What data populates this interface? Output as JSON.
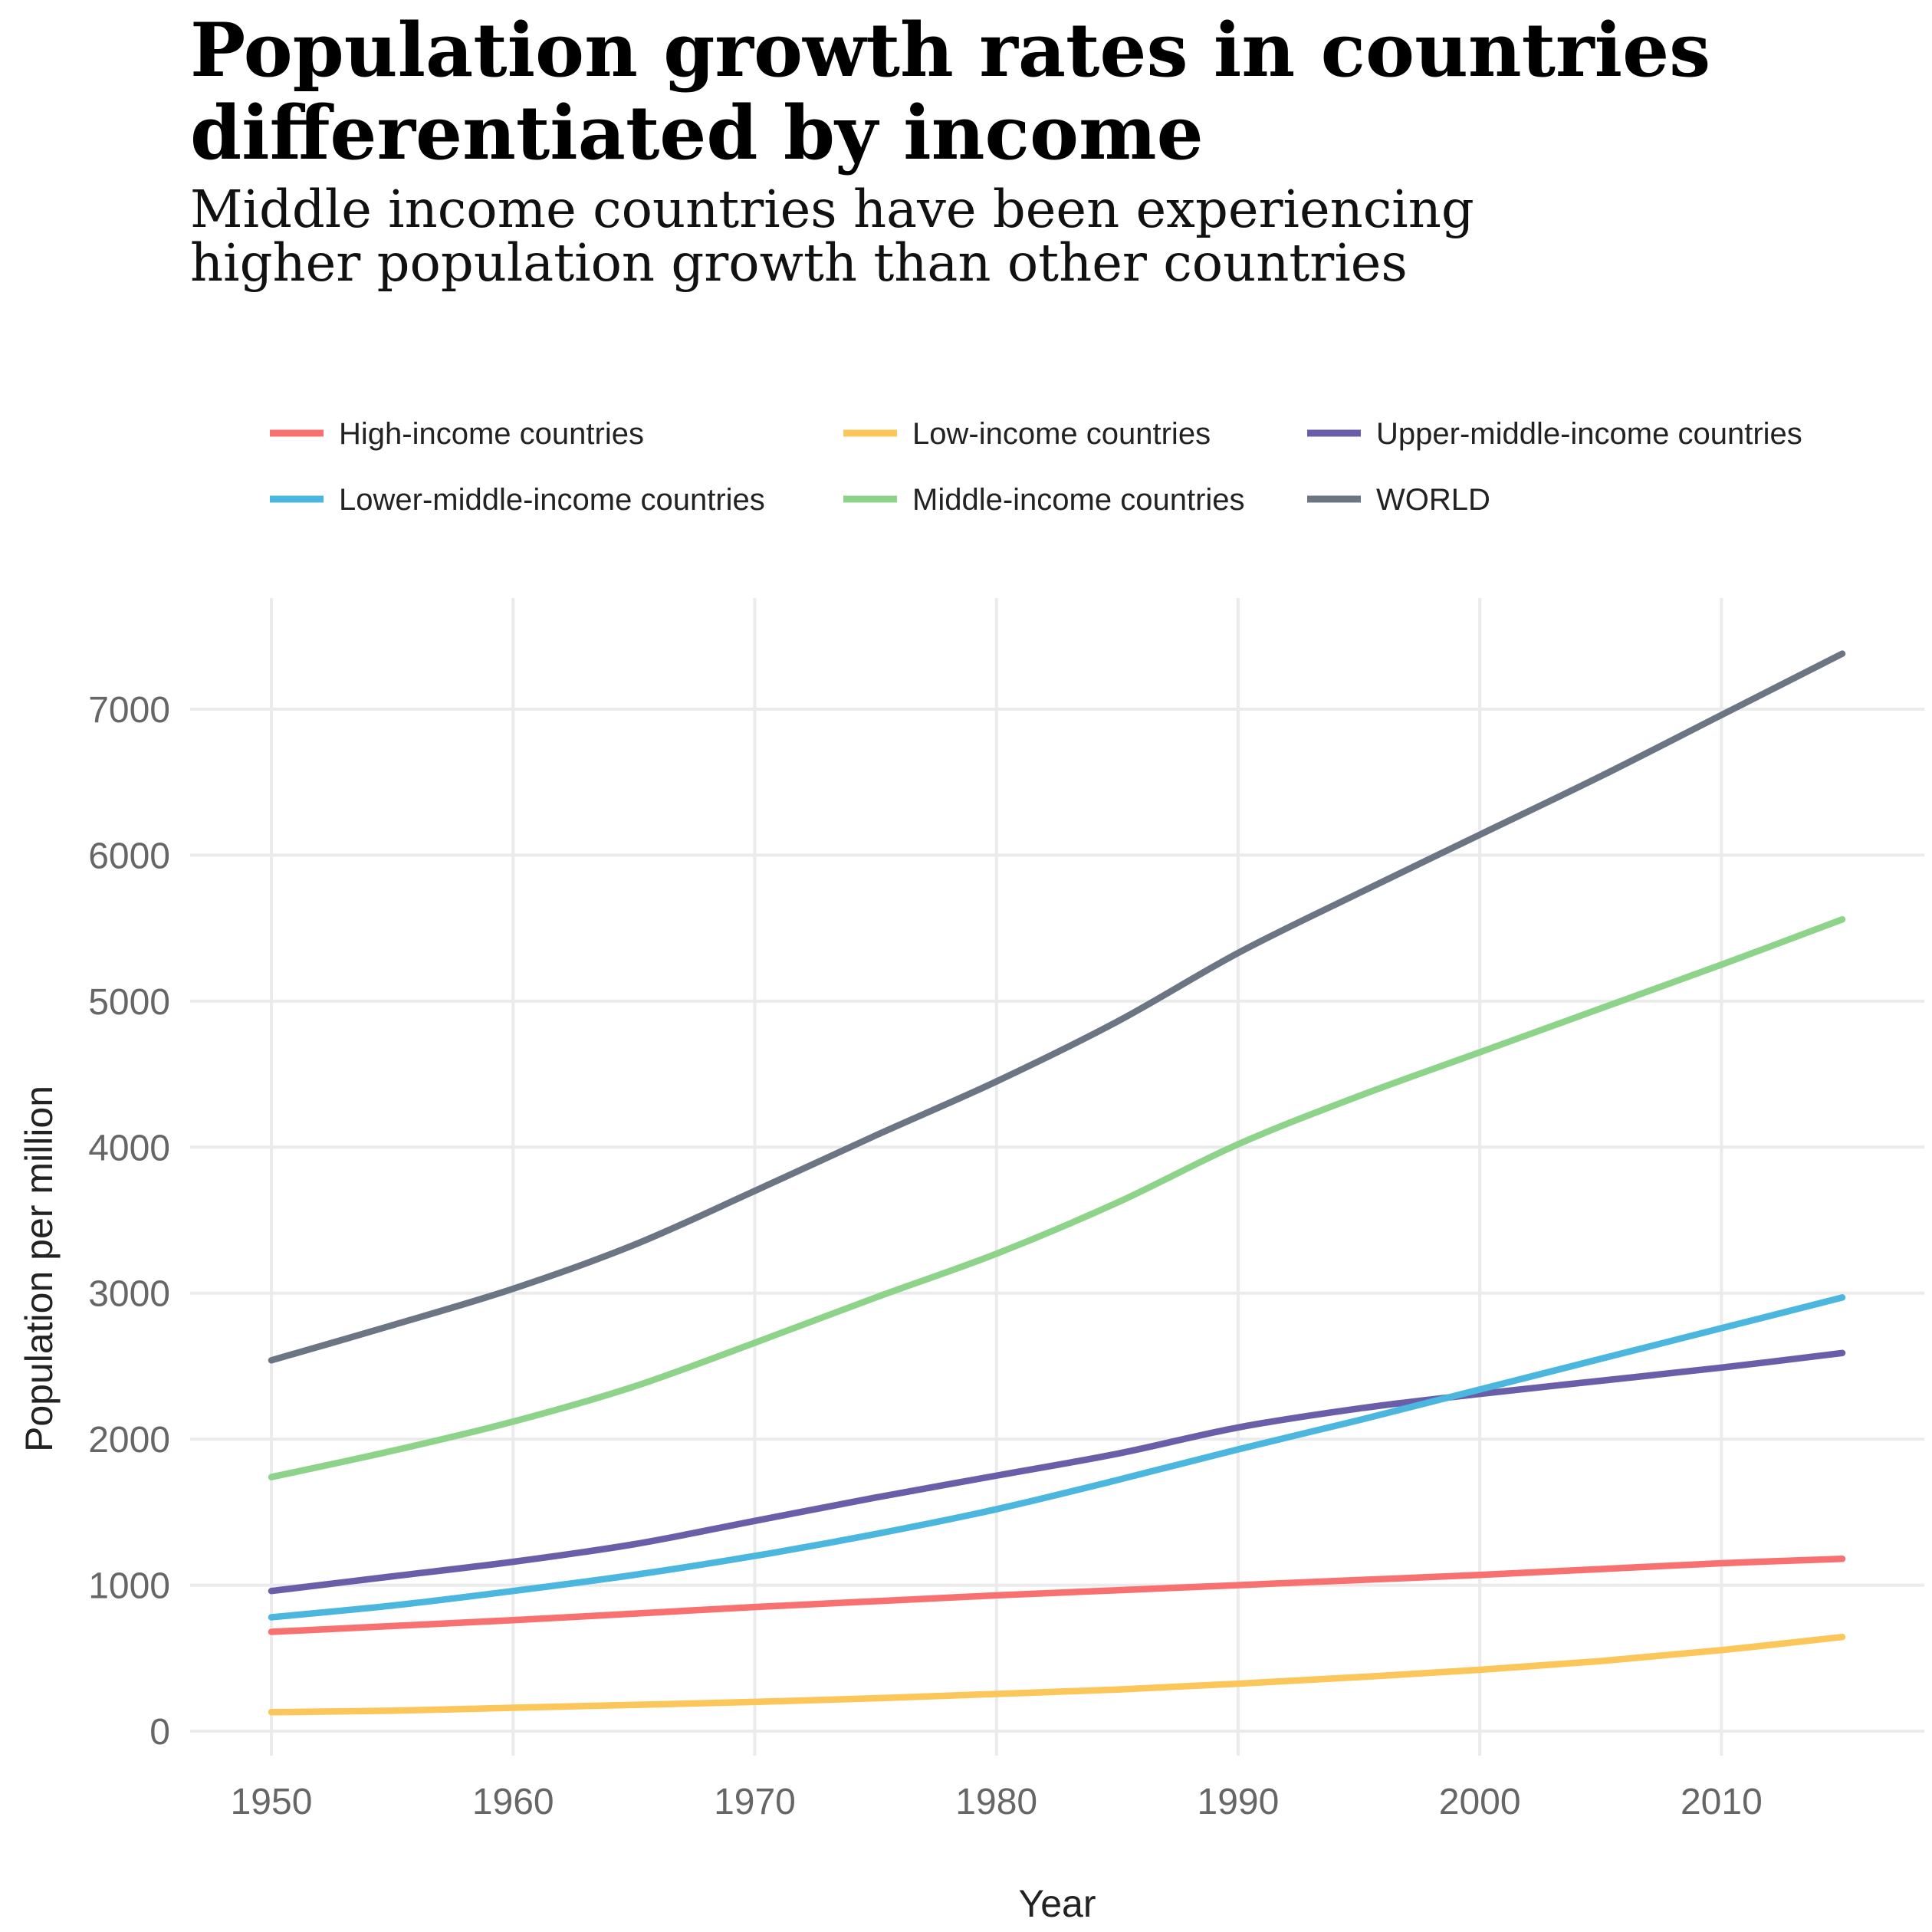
{
  "chart_data": {
    "type": "line",
    "title": [
      "Population growth rates in countries",
      "differentiated by income"
    ],
    "subtitle": [
      "Middle income countries have been experiencing",
      "higher population growth than other countries"
    ],
    "xlabel": "Year",
    "ylabel": "Population per million",
    "xlim": [
      1950,
      2015
    ],
    "ylim": [
      0,
      7000
    ],
    "xticks": [
      1950,
      1960,
      1970,
      1980,
      1990,
      2000,
      2010
    ],
    "yticks": [
      0,
      1000,
      2000,
      3000,
      4000,
      5000,
      6000,
      7000
    ],
    "grid": true,
    "legend_position": "top",
    "x": [
      1950,
      1955,
      1960,
      1965,
      1970,
      1975,
      1980,
      1985,
      1990,
      1995,
      2000,
      2005,
      2010,
      2015
    ],
    "series": [
      {
        "name": "High-income countries",
        "color": "#f87171",
        "values": [
          680,
          720,
          760,
          805,
          850,
          890,
          930,
          965,
          1000,
          1035,
          1070,
          1110,
          1150,
          1180
        ]
      },
      {
        "name": "Low-income countries",
        "color": "#fbc65a",
        "values": [
          130,
          140,
          160,
          180,
          200,
          225,
          255,
          285,
          325,
          370,
          420,
          480,
          555,
          645
        ]
      },
      {
        "name": "Upper-middle-income countries",
        "color": "#6b5ea8",
        "values": [
          960,
          1060,
          1160,
          1280,
          1440,
          1600,
          1750,
          1900,
          2080,
          2210,
          2310,
          2400,
          2490,
          2590
        ]
      },
      {
        "name": "Lower-middle-income countries",
        "color": "#4bb6de",
        "values": [
          780,
          860,
          960,
          1070,
          1200,
          1350,
          1520,
          1720,
          1930,
          2130,
          2340,
          2550,
          2760,
          2970
        ]
      },
      {
        "name": "Middle-income countries",
        "color": "#8dd48a",
        "values": [
          1740,
          1920,
          2120,
          2360,
          2660,
          2970,
          3270,
          3620,
          4020,
          4350,
          4650,
          4950,
          5250,
          5560
        ]
      },
      {
        "name": "WORLD",
        "color": "#6b7583",
        "values": [
          2540,
          2780,
          3030,
          3330,
          3700,
          4080,
          4450,
          4860,
          5330,
          5740,
          6140,
          6540,
          6960,
          7380
        ]
      }
    ]
  }
}
